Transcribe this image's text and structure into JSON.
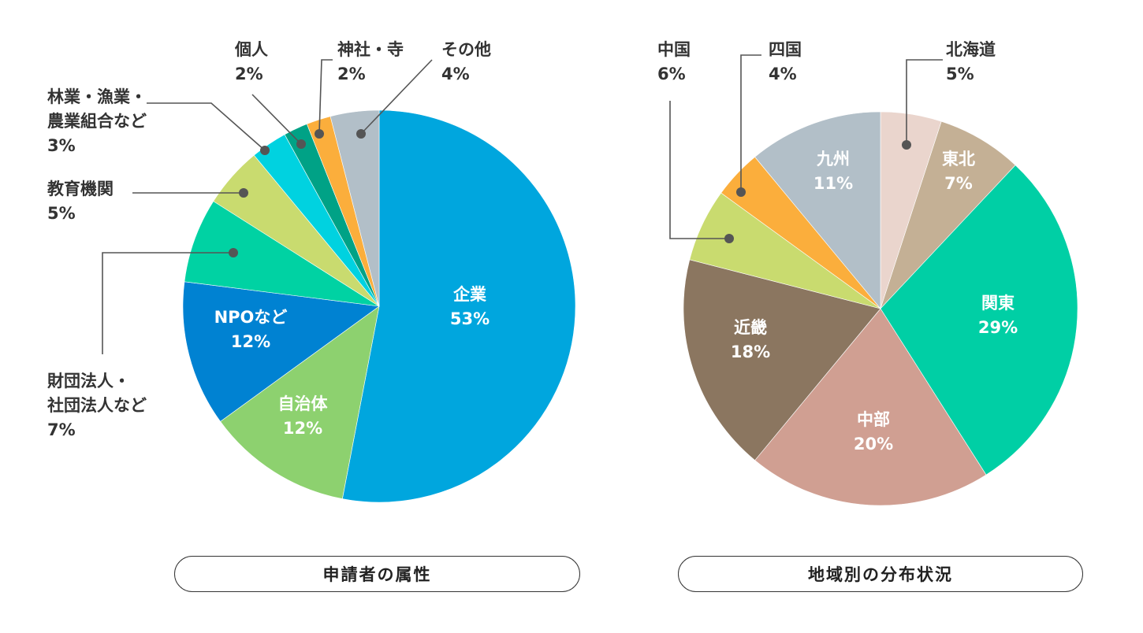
{
  "chart_data": [
    {
      "type": "pie",
      "title": "申請者の属性",
      "start_angle_deg": 0,
      "direction": "clockwise",
      "unit": "%",
      "slices": [
        {
          "label": [
            "企業"
          ],
          "value": 53,
          "pct": "53%",
          "color": "#00a6de",
          "label_pos": "inside"
        },
        {
          "label": [
            "自治体"
          ],
          "value": 12,
          "pct": "12%",
          "color": "#8dd16f",
          "label_pos": "inside"
        },
        {
          "label": [
            "NPOなど"
          ],
          "value": 12,
          "pct": "12%",
          "color": "#0082d2",
          "label_pos": "inside"
        },
        {
          "label": [
            "財団法人・",
            "社団法人など"
          ],
          "value": 7,
          "pct": "7%",
          "color": "#00d2a3",
          "label_pos": "outside"
        },
        {
          "label": [
            "教育機関"
          ],
          "value": 5,
          "pct": "5%",
          "color": "#c9db6f",
          "label_pos": "outside"
        },
        {
          "label": [
            "林業・漁業・",
            "農業組合など"
          ],
          "value": 3,
          "pct": "3%",
          "color": "#00d2e0",
          "label_pos": "outside"
        },
        {
          "label": [
            "個人"
          ],
          "value": 2,
          "pct": "2%",
          "color": "#00a286",
          "label_pos": "outside"
        },
        {
          "label": [
            "神社・寺"
          ],
          "value": 2,
          "pct": "2%",
          "color": "#fbae3c",
          "label_pos": "outside"
        },
        {
          "label": [
            "その他"
          ],
          "value": 4,
          "pct": "4%",
          "color": "#b2bfc8",
          "label_pos": "outside"
        }
      ]
    },
    {
      "type": "pie",
      "title": "地域別の分布状況",
      "start_angle_deg": 0,
      "direction": "clockwise",
      "unit": "%",
      "slices": [
        {
          "label": [
            "北海道"
          ],
          "value": 5,
          "pct": "5%",
          "color": "#ead5cd",
          "label_pos": "outside"
        },
        {
          "label": [
            "東北"
          ],
          "value": 7,
          "pct": "7%",
          "color": "#c4b095",
          "label_pos": "inside"
        },
        {
          "label": [
            "関東"
          ],
          "value": 29,
          "pct": "29%",
          "color": "#00cfa5",
          "label_pos": "inside"
        },
        {
          "label": [
            "中部"
          ],
          "value": 20,
          "pct": "20%",
          "color": "#d09f92",
          "label_pos": "inside"
        },
        {
          "label": [
            "近畿"
          ],
          "value": 18,
          "pct": "18%",
          "color": "#8b7660",
          "label_pos": "inside"
        },
        {
          "label": [
            "中国"
          ],
          "value": 6,
          "pct": "6%",
          "color": "#c9db6f",
          "label_pos": "outside"
        },
        {
          "label": [
            "四国"
          ],
          "value": 4,
          "pct": "4%",
          "color": "#fbae3c",
          "label_pos": "outside"
        },
        {
          "label": [
            "九州"
          ],
          "value": 11,
          "pct": "11%",
          "color": "#b2bfc8",
          "label_pos": "inside"
        }
      ]
    }
  ],
  "colors": {
    "leader_line": "#555555",
    "leader_dot": "#555555",
    "outside_text": "#333333",
    "inside_text": "#ffffff"
  }
}
